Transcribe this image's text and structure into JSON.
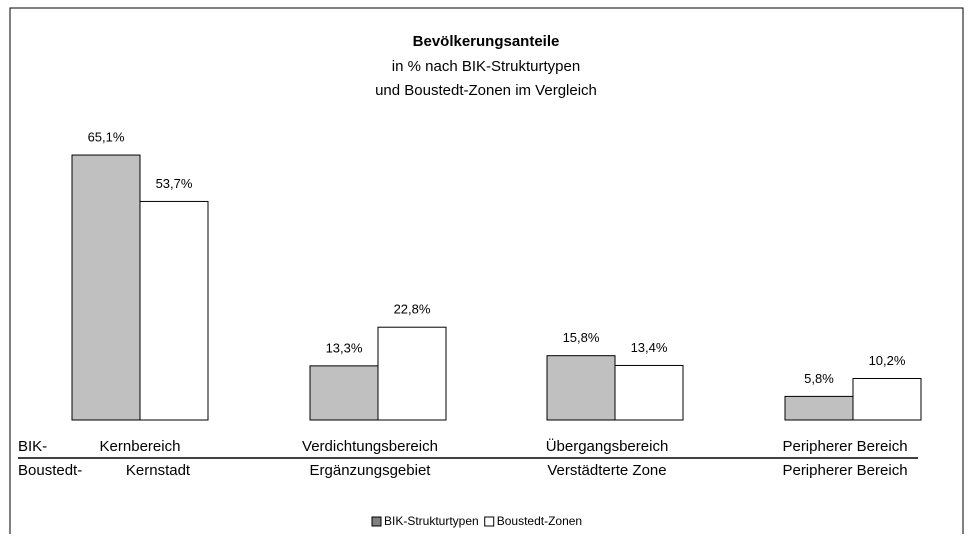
{
  "chart_data": {
    "type": "bar",
    "title": "Bevölkerungsanteile",
    "subtitle": [
      "in % nach BIK-Strukturtypen",
      "und Boustedt-Zonen im Vergleich"
    ],
    "category_rows": [
      {
        "name": "BIK-",
        "labels": [
          "Kernbereich",
          "Verdichtungsbereich",
          "Übergangsbereich",
          "Peripherer Bereich"
        ]
      },
      {
        "name": "Boustedt-",
        "labels": [
          "Kernstadt",
          "Ergänzungsgebiet",
          "Verstädterte Zone",
          "Peripherer Bereich"
        ]
      }
    ],
    "series": [
      {
        "name": "BIK-Strukturtypen",
        "color": "#c0c0c0",
        "values": [
          65.1,
          13.3,
          15.8,
          5.8
        ],
        "value_labels": [
          "65,1%",
          "13,3%",
          "15,8%",
          "5,8%"
        ]
      },
      {
        "name": "Boustedt-Zonen",
        "color": "#ffffff",
        "values": [
          53.7,
          22.8,
          13.4,
          10.2
        ],
        "value_labels": [
          "53,7%",
          "22,8%",
          "13,4%",
          "10,2%"
        ]
      }
    ],
    "ylim": [
      0,
      100
    ]
  }
}
